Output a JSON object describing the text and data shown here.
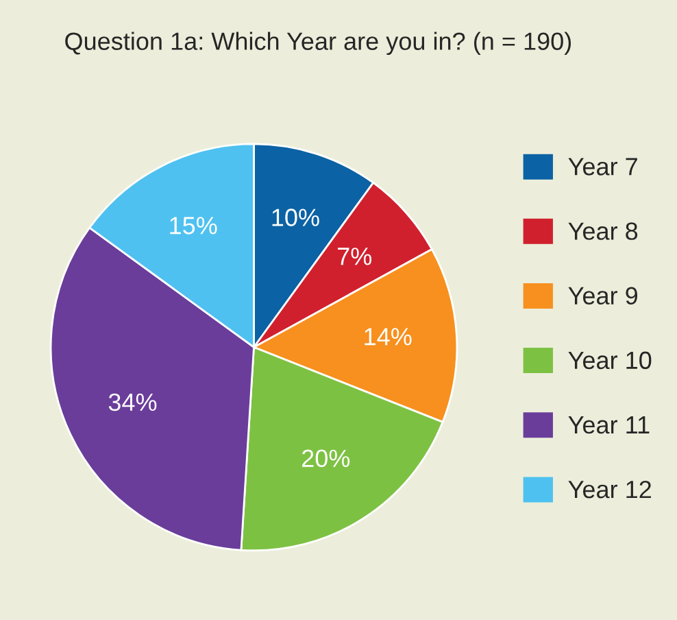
{
  "chart_data": {
    "type": "pie",
    "title": "Question 1a: Which Year are you in? (n = 190)",
    "categories": [
      "Year 7",
      "Year 8",
      "Year 9",
      "Year 10",
      "Year 11",
      "Year 12"
    ],
    "values": [
      10,
      7,
      14,
      20,
      34,
      15
    ],
    "colors": [
      "#0b62a4",
      "#d0202e",
      "#f7901e",
      "#7dc143",
      "#6a3d9a",
      "#4fc1f0"
    ],
    "value_labels": [
      "10%",
      "7%",
      "14%",
      "20%",
      "34%",
      "15%"
    ],
    "legend": "right"
  }
}
